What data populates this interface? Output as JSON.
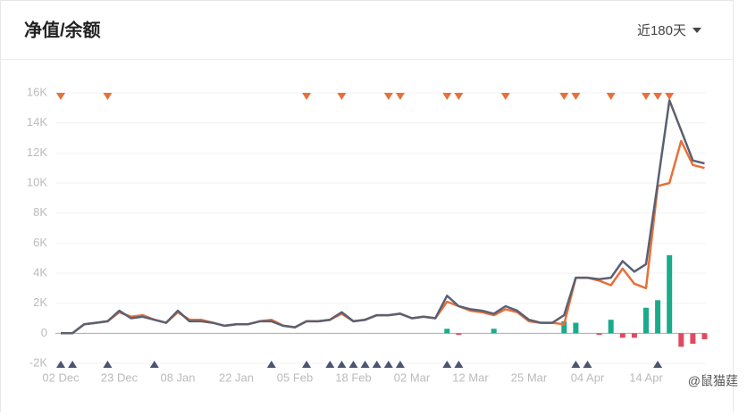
{
  "header": {
    "title": "净值/余额",
    "range_selector": "近180天"
  },
  "watermark": "@鼠猫莛",
  "chart_data": {
    "type": "line",
    "categories": [
      "02 Dec",
      null,
      null,
      null,
      null,
      "23 Dec",
      null,
      null,
      null,
      null,
      "08 Jan",
      null,
      null,
      null,
      null,
      "22 Jan",
      null,
      null,
      null,
      null,
      "05 Feb",
      null,
      null,
      null,
      null,
      "18 Feb",
      null,
      null,
      null,
      null,
      "02 Mar",
      null,
      null,
      null,
      null,
      "12 Mar",
      null,
      null,
      null,
      null,
      "25 Mar",
      null,
      null,
      null,
      null,
      "04 Apr",
      null,
      null,
      null,
      null,
      "14 Apr",
      null,
      null,
      null,
      null,
      null
    ],
    "series": [
      {
        "color": "#e8703a",
        "values": [
          0,
          0,
          600,
          700,
          800,
          1400,
          1100,
          1200,
          900,
          700,
          1400,
          900,
          900,
          700,
          500,
          600,
          600,
          800,
          900,
          500,
          400,
          800,
          800,
          900,
          1300,
          800,
          900,
          1200,
          1200,
          1300,
          1000,
          1100,
          1000,
          2100,
          1800,
          1500,
          1400,
          1200,
          1600,
          1400,
          800,
          700,
          700,
          600,
          3700,
          3700,
          3500,
          3200,
          4300,
          3300,
          3000,
          9800,
          10000,
          12800,
          11200,
          11000
        ]
      },
      {
        "color": "#5b6072",
        "values": [
          0,
          0,
          600,
          700,
          800,
          1500,
          1000,
          1100,
          900,
          700,
          1500,
          800,
          800,
          700,
          500,
          600,
          600,
          800,
          800,
          500,
          400,
          800,
          800,
          900,
          1400,
          800,
          900,
          1200,
          1200,
          1300,
          1000,
          1100,
          1000,
          2500,
          1800,
          1600,
          1500,
          1300,
          1800,
          1500,
          900,
          700,
          700,
          1200,
          3700,
          3700,
          3600,
          3700,
          4800,
          4100,
          4600,
          10000,
          15500,
          13500,
          11500,
          11300
        ]
      }
    ],
    "flow": {
      "positive_color": "#1aab8a",
      "negative_color": "#e04a5f",
      "values": [
        null,
        null,
        null,
        null,
        null,
        null,
        null,
        null,
        null,
        null,
        null,
        null,
        null,
        null,
        null,
        null,
        null,
        null,
        null,
        null,
        null,
        null,
        null,
        null,
        null,
        null,
        null,
        null,
        null,
        null,
        null,
        null,
        null,
        300,
        -100,
        null,
        null,
        300,
        null,
        null,
        null,
        null,
        null,
        800,
        700,
        null,
        -100,
        900,
        -300,
        -300,
        1700,
        2200,
        5200,
        -900,
        -700,
        -400
      ]
    },
    "sell_markers": {
      "color": "#e8703a",
      "at": [
        0,
        4,
        21,
        24,
        28,
        29,
        33,
        34,
        38,
        43,
        44,
        47,
        50,
        51,
        52
      ]
    },
    "buy_markers": {
      "color": "#4a5570",
      "at": [
        0,
        1,
        4,
        8,
        18,
        21,
        23,
        24,
        25,
        26,
        27,
        28,
        29,
        33,
        34,
        44,
        45,
        51
      ]
    },
    "ylim": [
      -2000,
      16000
    ],
    "yticks": [
      {
        "value": -2000,
        "label": "-2K"
      },
      0,
      {
        "value": 2000,
        "label": "2K"
      },
      {
        "value": 4000,
        "label": "4K"
      },
      {
        "value": 6000,
        "label": "6K"
      },
      {
        "value": 8000,
        "label": "8K"
      },
      {
        "value": 10000,
        "label": "10K"
      },
      {
        "value": 12000,
        "label": "12K"
      },
      {
        "value": 14000,
        "label": "14K"
      },
      {
        "value": 16000,
        "label": "16K"
      }
    ],
    "grid": true
  }
}
